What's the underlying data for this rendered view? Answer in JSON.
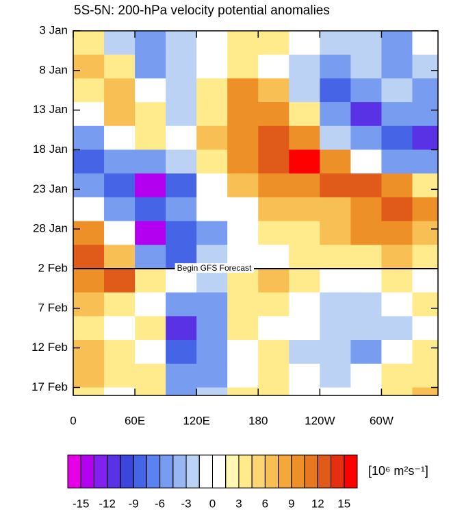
{
  "chart_data": {
    "type": "heatmap",
    "title": "5S-5N: 200-hPa velocity potential anomalies",
    "x": [
      15,
      45,
      75,
      105,
      135,
      165,
      195,
      225,
      255,
      285,
      315,
      345
    ],
    "y": [
      4.5,
      7.5,
      10.5,
      13.5,
      16.5,
      19.5,
      22.5,
      25.5,
      28.5,
      31.5,
      34.5,
      37.5,
      40.5,
      43.5,
      46.5,
      49.5
    ],
    "values": [
      [
        3,
        -3,
        -6,
        -3,
        0,
        3,
        3,
        0,
        -3,
        -3,
        -6,
        0
      ],
      [
        6,
        3,
        -6,
        -3,
        0,
        3,
        0,
        -3,
        -6,
        -3,
        -6,
        -3
      ],
      [
        3,
        6,
        0,
        -3,
        3,
        9,
        6,
        -3,
        -9,
        -6,
        -3,
        -6
      ],
      [
        0,
        6,
        3,
        -3,
        3,
        10,
        9,
        3,
        -6,
        -12,
        -6,
        -6
      ],
      [
        -6,
        0,
        3,
        0,
        6,
        10,
        12,
        9,
        -3,
        -6,
        -9,
        -12
      ],
      [
        -9,
        -6,
        -6,
        -3,
        3,
        9,
        12,
        15,
        9,
        0,
        -6,
        -6
      ],
      [
        -6,
        -9,
        -14,
        -9,
        0,
        6,
        9,
        9,
        12,
        12,
        9,
        3
      ],
      [
        0,
        -6,
        -9,
        -6,
        0,
        0,
        6,
        6,
        6,
        9,
        12,
        9
      ],
      [
        9,
        0,
        -15,
        -9,
        -6,
        0,
        3,
        3,
        6,
        9,
        9,
        6
      ],
      [
        12,
        6,
        -6,
        -9,
        -3,
        0,
        0,
        3,
        3,
        3,
        6,
        3
      ],
      [
        9,
        12,
        3,
        0,
        -3,
        3,
        6,
        3,
        0,
        0,
        3,
        0
      ],
      [
        6,
        3,
        0,
        -6,
        -6,
        3,
        3,
        0,
        -3,
        -3,
        0,
        3
      ],
      [
        3,
        0,
        3,
        -12,
        -6,
        3,
        0,
        0,
        -3,
        -3,
        -3,
        0
      ],
      [
        6,
        3,
        0,
        -9,
        -6,
        0,
        3,
        -3,
        -3,
        -6,
        0,
        3
      ],
      [
        6,
        3,
        3,
        -6,
        -6,
        0,
        3,
        0,
        -3,
        0,
        3,
        3
      ],
      [
        3,
        0,
        3,
        -6,
        -3,
        3,
        3,
        0,
        0,
        0,
        3,
        6
      ]
    ],
    "xlim": [
      0,
      355
    ],
    "xticks": [
      0,
      {
        "value": 60,
        "label": "60E"
      },
      {
        "value": 120,
        "label": "120E"
      },
      180,
      {
        "value": 240,
        "label": "120W"
      },
      {
        "value": 300,
        "label": "60W"
      }
    ],
    "ylim": [
      3,
      49
    ],
    "yticks": [
      {
        "value": 3,
        "label": "3 Jan"
      },
      {
        "value": 8,
        "label": "8 Jan"
      },
      {
        "value": 13,
        "label": "13 Jan"
      },
      {
        "value": 18,
        "label": "18 Jan"
      },
      {
        "value": 23,
        "label": "23 Jan"
      },
      {
        "value": 28,
        "label": "28 Jan"
      },
      {
        "value": 33,
        "label": "2 Feb"
      },
      {
        "value": 38,
        "label": "7 Feb"
      },
      {
        "value": 43,
        "label": "12 Feb"
      },
      {
        "value": 48,
        "label": "17 Feb"
      }
    ],
    "annotation": {
      "text": "Begin GFS Forecast",
      "y": 33
    },
    "levels": [
      -15,
      -13.5,
      -12,
      -10.5,
      -9,
      -7.5,
      -6,
      -4.5,
      -3,
      -1.5,
      0,
      1.5,
      3,
      4.5,
      6,
      7.5,
      9,
      10.5,
      12,
      13.5,
      15
    ],
    "colors": [
      "#e600e6",
      "#b400f0",
      "#8220f0",
      "#5a32e6",
      "#3c46dc",
      "#4664e6",
      "#5a82f0",
      "#789cf0",
      "#98b6f2",
      "#bcd2f4",
      "#ffffff",
      "#ffffff",
      "#fff8b4",
      "#ffea8c",
      "#fcd670",
      "#f8c054",
      "#f4a83a",
      "#ee9028",
      "#e67820",
      "#e05a1a",
      "#e43010",
      "#ff0000"
    ],
    "colorbar_ticks": [
      -15,
      -12,
      -9,
      -6,
      -3,
      0,
      3,
      6,
      9,
      12,
      15
    ],
    "units": "[10⁶ m²s⁻¹]"
  }
}
